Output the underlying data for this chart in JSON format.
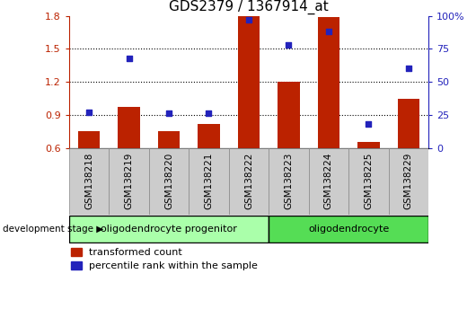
{
  "title": "GDS2379 / 1367914_at",
  "categories": [
    "GSM138218",
    "GSM138219",
    "GSM138220",
    "GSM138221",
    "GSM138222",
    "GSM138223",
    "GSM138224",
    "GSM138225",
    "GSM138229"
  ],
  "bar_values": [
    0.75,
    0.97,
    0.75,
    0.82,
    1.8,
    1.2,
    1.79,
    0.65,
    1.05
  ],
  "dot_values": [
    27,
    68,
    26,
    26,
    97,
    78,
    88,
    18,
    60
  ],
  "bar_color": "#bb2200",
  "dot_color": "#2222bb",
  "bar_baseline": 0.6,
  "ylim_left": [
    0.6,
    1.8
  ],
  "ylim_right": [
    0,
    100
  ],
  "yticks_left": [
    0.6,
    0.9,
    1.2,
    1.5,
    1.8
  ],
  "yticks_right": [
    0,
    25,
    50,
    75,
    100
  ],
  "ytick_labels_right": [
    "0",
    "25",
    "50",
    "75",
    "100%"
  ],
  "group1_label": "oligodendrocyte progenitor",
  "group2_label": "oligodendrocyte",
  "group1_count": 5,
  "group2_count": 4,
  "group1_color": "#aaffaa",
  "group2_color": "#55dd55",
  "dev_stage_label": "development stage",
  "legend1": "transformed count",
  "legend2": "percentile rank within the sample",
  "title_fontsize": 11,
  "tick_fontsize": 8,
  "label_fontsize": 8
}
